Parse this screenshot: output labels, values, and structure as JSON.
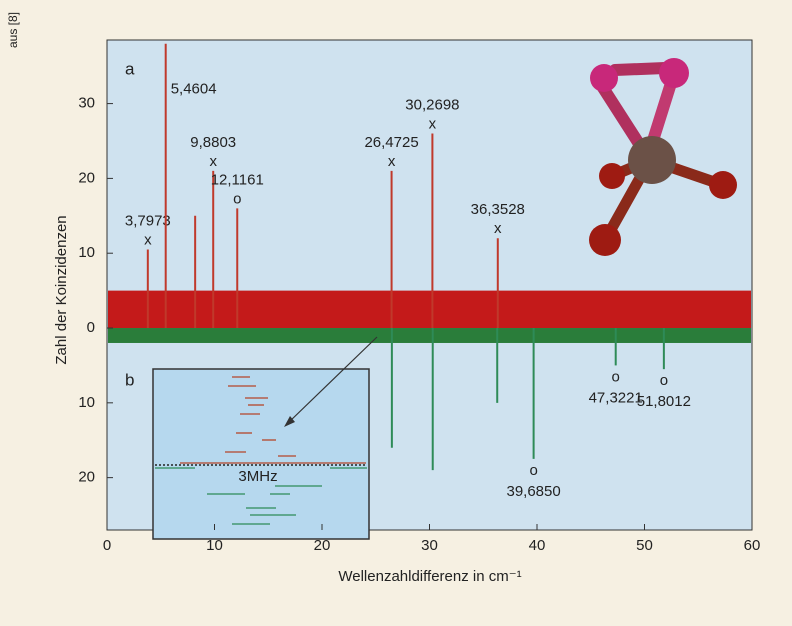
{
  "chart_data": {
    "type": "spectrum",
    "source_note": "aus [8]",
    "panel_labels": [
      "a",
      "b"
    ],
    "x_label": "Wellenzahldifferenz in cm⁻¹",
    "y_label": "Zahl der Koinzidenzen",
    "inset_label": "3MHz",
    "xlim": [
      0,
      60
    ],
    "ylim": [
      -27,
      38.5
    ],
    "xticks": [
      0,
      10,
      20,
      30,
      40,
      50,
      60
    ],
    "yticks": [
      {
        "value": -20,
        "label": "20"
      },
      {
        "value": -10,
        "label": "10"
      },
      0,
      10,
      20,
      30
    ],
    "series": [
      {
        "color": "#c0392b",
        "x": [
          3.7973,
          5.4604,
          8.2,
          9.8803,
          12.1161,
          26.4725,
          30.2698,
          36.3528
        ],
        "values": [
          10.5,
          38,
          15,
          21,
          16,
          21,
          26,
          12
        ],
        "value_labels": [
          "3,7973",
          "5,4604",
          null,
          "9,8803",
          "12,1161",
          "26,4725",
          "30,2698",
          "36,3528"
        ],
        "markers": [
          "x",
          null,
          null,
          "x",
          "o",
          "x",
          "x",
          "x"
        ]
      },
      {
        "color": "#2e8b57",
        "x": [
          26.5,
          30.3,
          36.3,
          39.685,
          47.3221,
          51.8012
        ],
        "values": [
          -16,
          -19,
          -10,
          -17.5,
          -5,
          -5.5
        ],
        "value_labels": [
          null,
          null,
          null,
          "39,6850",
          "47,3221",
          "51,8012"
        ],
        "markers": [
          null,
          null,
          null,
          "o",
          "o",
          "o"
        ]
      }
    ]
  }
}
